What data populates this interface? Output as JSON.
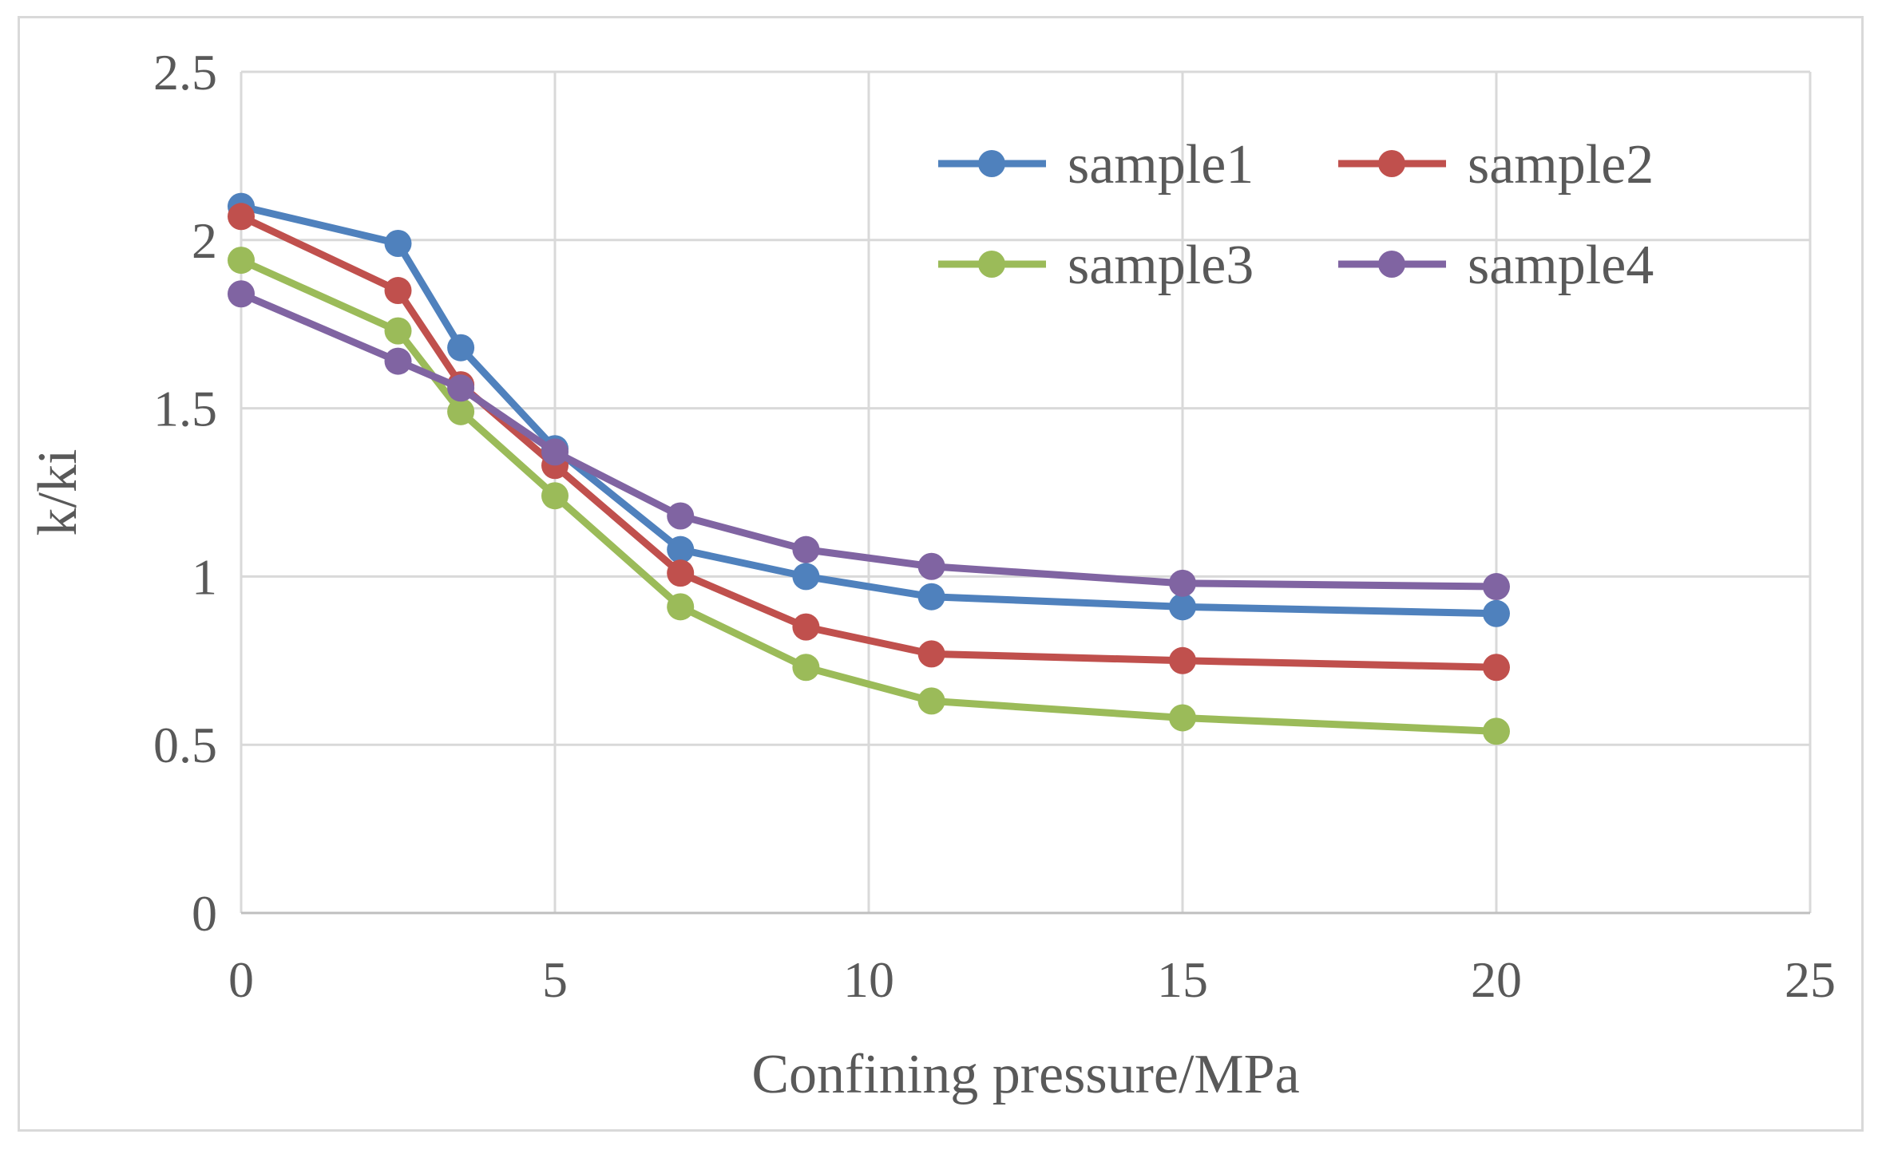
{
  "chart_data": {
    "type": "line",
    "title": "",
    "xlabel": "Confining pressure/MPa",
    "ylabel": "k/ki",
    "xlim": [
      0,
      25
    ],
    "ylim": [
      0,
      2.5
    ],
    "xticks": [
      0,
      5,
      10,
      15,
      20,
      25
    ],
    "yticks": [
      0,
      0.5,
      1,
      1.5,
      2,
      2.5
    ],
    "xtick_labels": [
      "0",
      "5",
      "10",
      "15",
      "20",
      "25"
    ],
    "ytick_labels": [
      "0",
      "0.5",
      "1",
      "1.5",
      "2",
      "2.5"
    ],
    "grid": true,
    "legend_position": "top-right",
    "x": [
      0,
      2.5,
      3.5,
      5,
      7,
      9,
      11,
      15,
      20
    ],
    "series": [
      {
        "name": "sample1",
        "color": "#4f81bd",
        "values": [
          2.1,
          1.99,
          1.68,
          1.38,
          1.08,
          1.0,
          0.94,
          0.91,
          0.89
        ]
      },
      {
        "name": "sample2",
        "color": "#c0504d",
        "values": [
          2.07,
          1.85,
          1.57,
          1.33,
          1.01,
          0.85,
          0.77,
          0.75,
          0.73
        ]
      },
      {
        "name": "sample3",
        "color": "#9bbb59",
        "values": [
          1.94,
          1.73,
          1.49,
          1.24,
          0.91,
          0.73,
          0.63,
          0.58,
          0.54
        ]
      },
      {
        "name": "sample4",
        "color": "#8064a2",
        "values": [
          1.84,
          1.64,
          1.56,
          1.37,
          1.18,
          1.08,
          1.03,
          0.98,
          0.97
        ]
      }
    ]
  }
}
